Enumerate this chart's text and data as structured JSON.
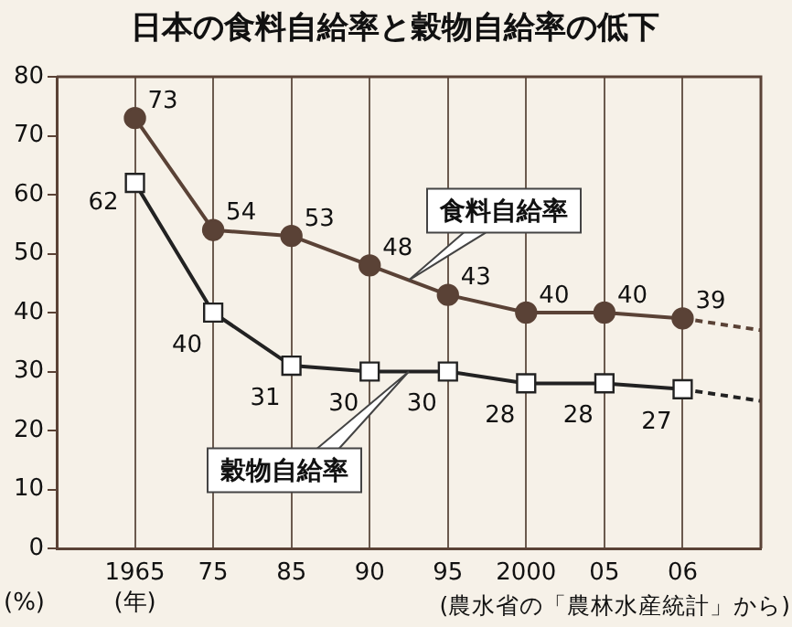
{
  "chart_data": {
    "type": "line",
    "title": "日本の食料自給率と穀物自給率の低下",
    "xlabel": "(年)",
    "ylabel": "(%)",
    "categories": [
      null,
      "1965",
      "75",
      "85",
      "90",
      "95",
      "2000",
      "05",
      "06",
      null
    ],
    "series": [
      {
        "name": "食料自給率",
        "color": "#5a4236",
        "marker": "circle",
        "values": [
          null,
          73,
          54,
          53,
          48,
          43,
          40,
          40,
          39,
          null
        ]
      },
      {
        "name": "穀物自給率",
        "color": "#222222",
        "marker": "square",
        "values": [
          null,
          62,
          40,
          31,
          30,
          30,
          28,
          28,
          27,
          null
        ]
      },
      {
        "color": "#5a4236",
        "line_style": "dashed",
        "values": [
          null,
          null,
          null,
          null,
          null,
          null,
          null,
          null,
          39,
          37
        ],
        "value_labels": [
          null,
          null,
          null,
          null,
          null,
          null,
          null,
          null,
          null,
          null
        ]
      },
      {
        "color": "#222222",
        "line_style": "dashed",
        "values": [
          null,
          null,
          null,
          null,
          null,
          null,
          null,
          null,
          27,
          25
        ],
        "value_labels": [
          null,
          null,
          null,
          null,
          null,
          null,
          null,
          null,
          null,
          null
        ]
      }
    ],
    "ylim": [
      0,
      80
    ],
    "yticks": [
      0,
      10,
      20,
      30,
      40,
      50,
      60,
      70,
      80
    ],
    "grid": "x",
    "legend": false,
    "data_labels": true,
    "annotations": [
      "(農水省の「農林水産統計」から)"
    ]
  }
}
